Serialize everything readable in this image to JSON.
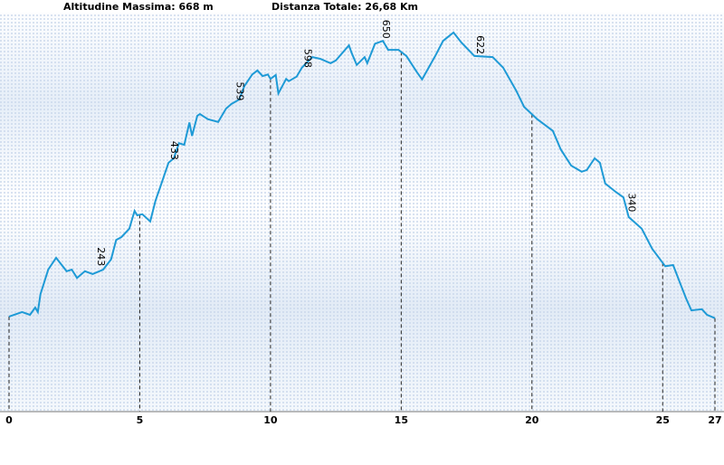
{
  "chart_data": {
    "type": "line",
    "header_left": "Altitudine Massima: 668 m",
    "header_right": "Distanza Totale: 26,68 Km",
    "x": [
      0,
      0.5,
      0.8,
      1.0,
      1.1,
      1.2,
      1.5,
      1.8,
      2.2,
      2.4,
      2.6,
      2.9,
      3.2,
      3.6,
      3.9,
      4.1,
      4.3,
      4.6,
      4.8,
      4.9,
      5.1,
      5.4,
      5.6,
      5.8,
      6.1,
      6.3,
      6.5,
      6.7,
      6.9,
      7.0,
      7.2,
      7.3,
      7.5,
      7.6,
      8.0,
      8.3,
      8.5,
      8.8,
      9.0,
      9.3,
      9.5,
      9.7,
      9.9,
      10.0,
      10.2,
      10.3,
      10.6,
      10.7,
      11.0,
      11.2,
      11.6,
      11.9,
      12.3,
      12.5,
      13.0,
      13.1,
      13.3,
      13.6,
      13.7,
      14.0,
      14.3,
      14.5,
      14.9,
      15.2,
      15.6,
      15.8,
      16.3,
      16.6,
      17.0,
      17.3,
      17.8,
      18.5,
      18.9,
      19.4,
      19.7,
      20.2,
      20.8,
      21.1,
      21.5,
      21.9,
      22.1,
      22.4,
      22.6,
      22.8,
      23.2,
      23.5,
      23.7,
      24.2,
      24.6,
      25.1,
      25.4,
      25.7,
      25.9,
      26.1,
      26.5,
      26.7,
      27.0
    ],
    "series": [
      {
        "color": "#1e9ad6",
        "values": [
          162,
          170,
          165,
          178,
          170,
          202,
          246,
          267,
          243,
          246,
          231,
          243,
          238,
          246,
          264,
          299,
          304,
          319,
          351,
          343,
          345,
          332,
          369,
          396,
          437,
          445,
          472,
          469,
          509,
          485,
          521,
          524,
          518,
          515,
          510,
          534,
          542,
          550,
          574,
          595,
          602,
          592,
          595,
          587,
          594,
          561,
          587,
          583,
          591,
          607,
          626,
          623,
          615,
          620,
          647,
          634,
          612,
          626,
          615,
          650,
          655,
          639,
          639,
          628,
          599,
          586,
          628,
          655,
          670,
          652,
          628,
          626,
          607,
          566,
          537,
          515,
          494,
          461,
          432,
          421,
          424,
          445,
          437,
          400,
          385,
          375,
          340,
          319,
          283,
          252,
          254,
          218,
          194,
          173,
          175,
          165,
          159
        ]
      }
    ],
    "point_labels": [
      {
        "x": 3.4,
        "value": 243
      },
      {
        "x": 6.2,
        "value": 433
      },
      {
        "x": 8.7,
        "value": 539
      },
      {
        "x": 11.3,
        "value": 598
      },
      {
        "x": 14.3,
        "value": 650
      },
      {
        "x": 17.9,
        "value": 622
      },
      {
        "x": 23.7,
        "value": 340
      }
    ],
    "xlim": [
      0,
      27
    ],
    "xticks": [
      0,
      5,
      10,
      15,
      20,
      25,
      27
    ],
    "ylim": [
      0,
      720
    ]
  }
}
